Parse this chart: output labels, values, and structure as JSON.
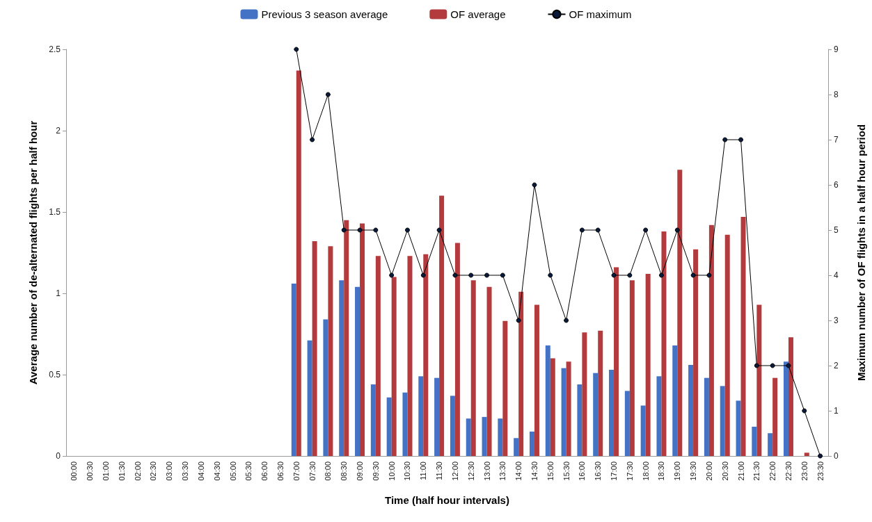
{
  "chart_data": {
    "type": "bar",
    "xlabel": "Time (half hour intervals)",
    "ylabel": "Average number of de-alternated flights per half hour",
    "y2label": "Maximum number of OF flights in a half hour period",
    "categories": [
      "00:00",
      "00:30",
      "01:00",
      "01:30",
      "02:00",
      "02:30",
      "03:00",
      "03:30",
      "04:00",
      "04:30",
      "05:00",
      "05:30",
      "06:00",
      "06:30",
      "07:00",
      "07:30",
      "08:00",
      "08:30",
      "09:00",
      "09:30",
      "10:00",
      "10:30",
      "11:00",
      "11:30",
      "12:00",
      "12:30",
      "13:00",
      "13:30",
      "14:00",
      "14:30",
      "15:00",
      "15:30",
      "16:00",
      "16:30",
      "17:00",
      "17:30",
      "18:00",
      "18:30",
      "19:00",
      "19:30",
      "20:00",
      "20:30",
      "21:00",
      "21:30",
      "22:00",
      "22:30",
      "23:00",
      "23:30"
    ],
    "series": [
      {
        "name": "Previous 3 season average",
        "color": "#4472c4",
        "values": [
          0,
          0,
          0,
          0,
          0,
          0,
          0,
          0,
          0,
          0,
          0,
          0,
          0,
          0,
          1.06,
          0.71,
          0.84,
          1.08,
          1.04,
          0.44,
          0.36,
          0.39,
          0.49,
          0.48,
          0.37,
          0.23,
          0.24,
          0.23,
          0.11,
          0.15,
          0.68,
          0.54,
          0.44,
          0.51,
          0.53,
          0.4,
          0.31,
          0.49,
          0.68,
          0.56,
          0.48,
          0.43,
          0.34,
          0.18,
          0.14,
          0.58,
          0,
          0
        ]
      },
      {
        "name": "OF average",
        "color": "#b33b3e",
        "values": [
          0,
          0,
          0,
          0,
          0,
          0,
          0,
          0,
          0,
          0,
          0,
          0,
          0,
          0,
          2.37,
          1.32,
          1.29,
          1.45,
          1.43,
          1.23,
          1.1,
          1.23,
          1.24,
          1.6,
          1.31,
          1.08,
          1.04,
          0.83,
          1.01,
          0.93,
          0.6,
          0.58,
          0.76,
          0.77,
          1.16,
          1.08,
          1.12,
          1.38,
          1.76,
          1.27,
          1.42,
          1.36,
          1.47,
          0.93,
          0.48,
          0.73,
          0.02,
          0
        ]
      },
      {
        "name": "OF maximum",
        "type": "line",
        "axis": "y2",
        "color": "#000000",
        "marker": "circle",
        "values": [
          null,
          null,
          null,
          null,
          null,
          null,
          null,
          null,
          null,
          null,
          null,
          null,
          null,
          null,
          9,
          7,
          8,
          5,
          5,
          5,
          4,
          5,
          4,
          5,
          4,
          4,
          4,
          4,
          3,
          6,
          4,
          3,
          5,
          5,
          4,
          4,
          5,
          4,
          5,
          4,
          4,
          7,
          7,
          2,
          2,
          2,
          1,
          0
        ]
      }
    ],
    "ylim": [
      0,
      2.5
    ],
    "yticks": [
      0,
      0.5,
      1,
      1.5,
      2,
      2.5
    ],
    "y2lim": [
      0,
      9
    ],
    "y2ticks": [
      0,
      1,
      2,
      3,
      4,
      5,
      6,
      7,
      8,
      9
    ],
    "grid": false,
    "legend": "top"
  }
}
